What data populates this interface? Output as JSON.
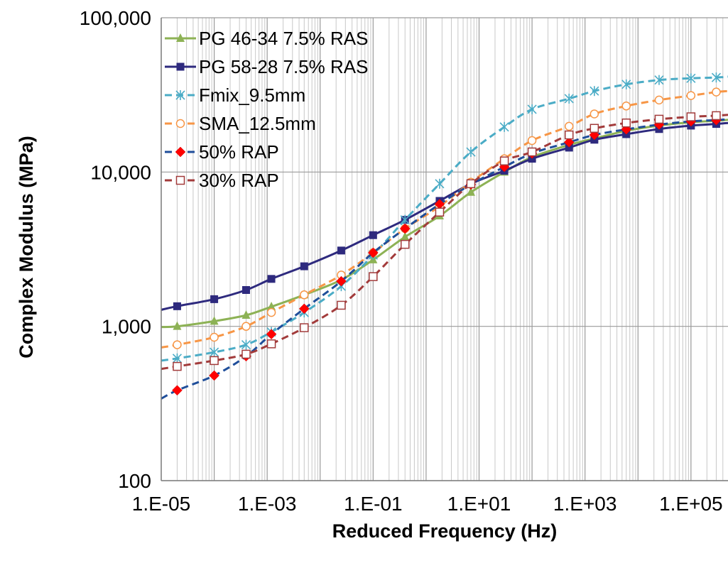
{
  "chart_data": {
    "type": "line",
    "xlabel": "Reduced Frequency (Hz)",
    "ylabel": "Complex Modulus (MPa)",
    "x_scale": "log",
    "y_scale": "log",
    "xlim": [
      1e-05,
      500000.0
    ],
    "ylim": [
      100,
      100000
    ],
    "x_ticks": [
      1e-05,
      0.001,
      0.1,
      10,
      1000,
      100000
    ],
    "x_tick_labels": [
      "1.E-05",
      "1.E-03",
      "1.E-01",
      "1.E+01",
      "1.E+03",
      "1.E+05"
    ],
    "y_ticks": [
      100,
      1000,
      10000,
      100000
    ],
    "y_tick_labels": [
      "100",
      "1,000",
      "10,000",
      "100,000"
    ],
    "grid": "major and minor vertical, major horizontal",
    "legend_position": "top-left",
    "series": [
      {
        "name": "PG 46-34 7.5% RAS",
        "color": "#8DB255",
        "dash": "solid",
        "marker": "triangle",
        "x": [
          1e-05,
          2e-05,
          0.0001,
          0.0004,
          0.0012,
          0.005,
          0.025,
          0.1,
          0.4,
          1.8,
          7,
          30,
          100,
          500,
          1500,
          6000,
          25000,
          100000,
          300000,
          500000
        ],
        "y": [
          990,
          1000,
          1080,
          1180,
          1340,
          1600,
          2000,
          2700,
          3800,
          5200,
          7400,
          10000,
          12500,
          15000,
          16500,
          18500,
          20000,
          21000,
          21500,
          21800
        ]
      },
      {
        "name": "PG 58-28 7.5% RAS",
        "color": "#2E2A7E",
        "dash": "solid",
        "marker": "square",
        "x": [
          1e-05,
          2e-05,
          0.0001,
          0.0004,
          0.0012,
          0.005,
          0.025,
          0.1,
          0.4,
          1.8,
          7,
          30,
          100,
          500,
          1500,
          6000,
          25000,
          100000,
          300000,
          500000
        ],
        "y": [
          1280,
          1350,
          1500,
          1720,
          2030,
          2450,
          3100,
          3900,
          4900,
          6500,
          8400,
          10200,
          12200,
          14400,
          16200,
          17600,
          19000,
          20000,
          20500,
          20800
        ]
      },
      {
        "name": "Fmix_9.5mm",
        "color": "#4BACC6",
        "dash": "dashed",
        "marker": "star",
        "x": [
          1e-05,
          2e-05,
          0.0001,
          0.0004,
          0.0012,
          0.005,
          0.025,
          0.1,
          0.4,
          1.8,
          7,
          30,
          100,
          500,
          1500,
          6000,
          25000,
          100000,
          300000,
          500000
        ],
        "y": [
          600,
          620,
          680,
          760,
          920,
          1230,
          1820,
          2900,
          4900,
          8400,
          13500,
          19600,
          25500,
          29900,
          33500,
          37000,
          39500,
          40500,
          41000,
          41500
        ]
      },
      {
        "name": "SMA_12.5mm",
        "color": "#F79646",
        "dash": "dashed",
        "marker": "circle",
        "x": [
          1e-05,
          2e-05,
          0.0001,
          0.0004,
          0.0012,
          0.005,
          0.025,
          0.1,
          0.4,
          1.8,
          7,
          30,
          100,
          500,
          1500,
          6000,
          25000,
          100000,
          300000,
          500000
        ],
        "y": [
          730,
          760,
          850,
          1000,
          1230,
          1600,
          2150,
          3000,
          4300,
          6000,
          8600,
          12200,
          16000,
          19800,
          23800,
          26800,
          29300,
          31300,
          33000,
          33500
        ]
      },
      {
        "name": "50% RAP",
        "color": "#1F4E9A",
        "dash": "dashed",
        "marker": "diamond",
        "x": [
          1e-05,
          2e-05,
          0.0001,
          0.0004,
          0.0012,
          0.005,
          0.025,
          0.1,
          0.4,
          1.8,
          7,
          30,
          100,
          500,
          1500,
          6000,
          25000,
          100000,
          300000,
          500000
        ],
        "y": [
          340,
          385,
          480,
          640,
          890,
          1300,
          1960,
          3000,
          4300,
          6200,
          8300,
          10800,
          13200,
          15600,
          17400,
          18900,
          20300,
          21300,
          21700,
          22000
        ]
      },
      {
        "name": "30% RAP",
        "color": "#A23B3B",
        "dash": "dashed",
        "marker": "square-open",
        "x": [
          1e-05,
          2e-05,
          0.0001,
          0.0004,
          0.0012,
          0.005,
          0.025,
          0.1,
          0.4,
          1.8,
          7,
          30,
          100,
          500,
          1500,
          6000,
          25000,
          100000,
          300000,
          500000
        ],
        "y": [
          530,
          550,
          600,
          660,
          770,
          980,
          1370,
          2100,
          3400,
          5500,
          8400,
          11800,
          13500,
          17400,
          19200,
          20800,
          22000,
          22800,
          23200,
          23500
        ]
      }
    ]
  }
}
